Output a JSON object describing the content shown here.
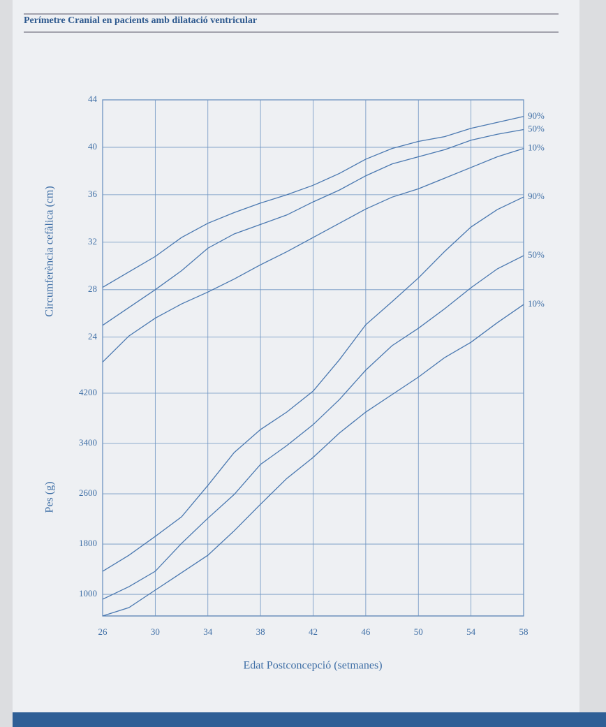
{
  "header": {
    "title": "Perímetre Cranial en pacients amb dilatació ventricular"
  },
  "chart_data": {
    "type": "line",
    "ylabel": "Circumferència cefàlica (cm)",
    "y2label": "Pes (g)",
    "xlabel": "Edat Postconcepció (setmanes)",
    "x": [
      26,
      28,
      30,
      32,
      34,
      36,
      38,
      40,
      42,
      44,
      46,
      48,
      50,
      52,
      54,
      56,
      58
    ],
    "xlim": [
      26,
      58
    ],
    "xticks": [
      26,
      30,
      34,
      38,
      42,
      46,
      50,
      54,
      58
    ],
    "ylim": [
      0.5,
      44
    ],
    "yticks": [
      24,
      28,
      32,
      36,
      40,
      44
    ],
    "y2lim": [
      656,
      8867
    ],
    "y2ticks": [
      1000,
      1800,
      2600,
      3400,
      4200
    ],
    "grid": true,
    "series": [
      {
        "name": "90%",
        "color": "#4a78b0",
        "values": [
          28.2,
          29.5,
          30.8,
          32.4,
          33.6,
          34.5,
          35.3,
          36.0,
          36.8,
          37.8,
          39.0,
          39.9,
          40.5,
          40.9,
          41.6,
          42.1,
          42.6
        ]
      },
      {
        "name": "50%",
        "color": "#4a78b0",
        "values": [
          25.0,
          26.5,
          28.0,
          29.6,
          31.5,
          32.7,
          33.5,
          34.3,
          35.4,
          36.4,
          37.6,
          38.6,
          39.2,
          39.8,
          40.6,
          41.1,
          41.5
        ]
      },
      {
        "name": "10%",
        "color": "#4a78b0",
        "values": [
          21.9,
          24.1,
          25.6,
          26.8,
          27.8,
          28.9,
          30.1,
          31.2,
          32.4,
          33.6,
          34.8,
          35.8,
          36.5,
          37.4,
          38.3,
          39.2,
          39.9
        ]
      },
      {
        "name": "90%",
        "color": "#4a78b0",
        "axis": "y2",
        "values": [
          1367,
          1622,
          1922,
          2233,
          2733,
          3256,
          3622,
          3900,
          4233,
          4733,
          5289,
          5656,
          6033,
          6456,
          6844,
          7122,
          7322
        ]
      },
      {
        "name": "50%",
        "color": "#4a78b0",
        "axis": "y2",
        "values": [
          922,
          1122,
          1367,
          1811,
          2211,
          2589,
          3067,
          3367,
          3700,
          4100,
          4567,
          4956,
          5233,
          5544,
          5878,
          6178,
          6389
        ]
      },
      {
        "name": "10%",
        "color": "#4a78b0",
        "axis": "y2",
        "values": [
          656,
          789,
          1067,
          1344,
          1622,
          2011,
          2433,
          2844,
          3178,
          3567,
          3900,
          4178,
          4456,
          4767,
          5011,
          5322,
          5611
        ]
      }
    ]
  }
}
